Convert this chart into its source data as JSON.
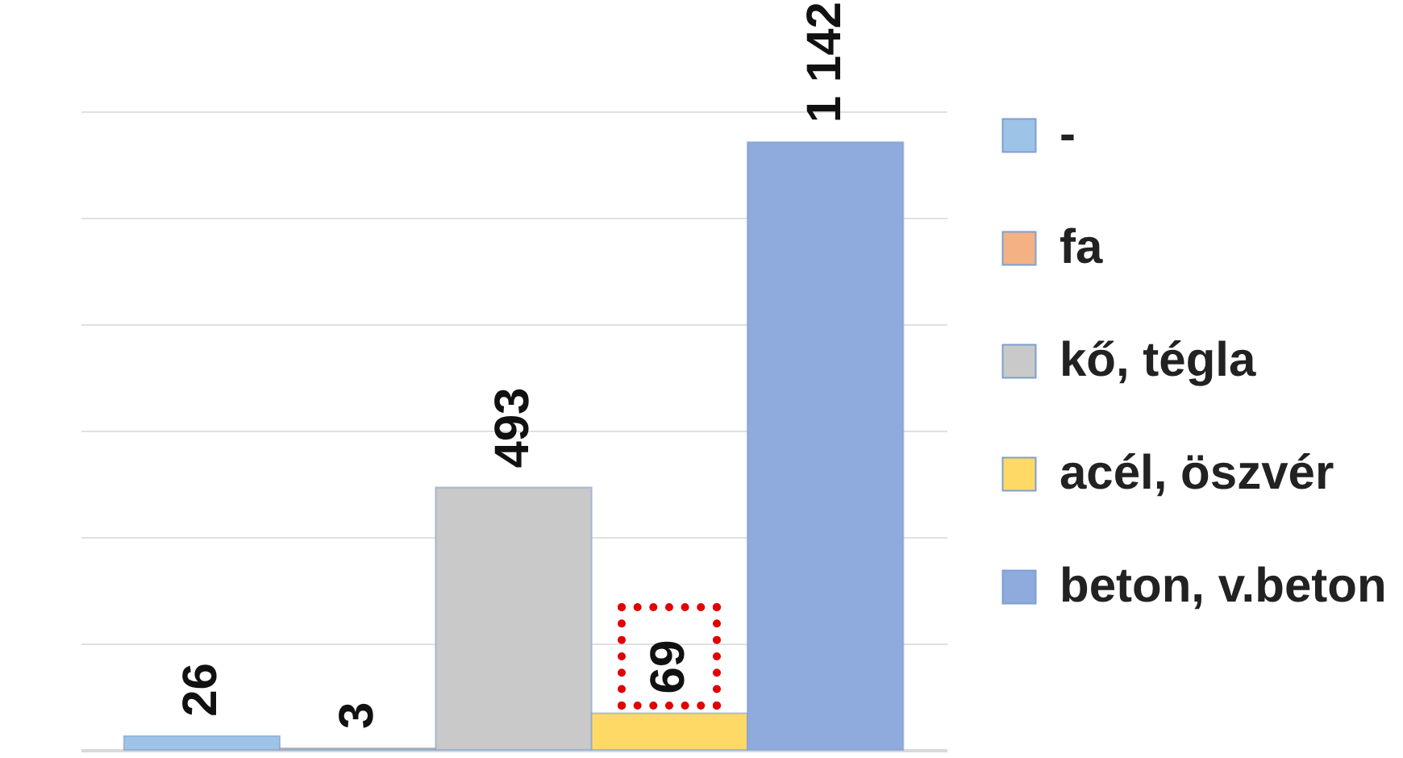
{
  "chart_data": {
    "type": "bar",
    "categories": [
      null
    ],
    "series": [
      {
        "name": "-",
        "color": "#9dc3e6",
        "values": [
          26
        ],
        "value_labels": [
          "26"
        ]
      },
      {
        "name": "fa",
        "color": "#f4b183",
        "values": [
          3
        ],
        "value_labels": [
          "3"
        ]
      },
      {
        "name": "kő, tégla",
        "color": "#c9c9c9",
        "values": [
          493
        ],
        "value_labels": [
          "493"
        ]
      },
      {
        "name": "acél, öszvér",
        "color": "#ffd966",
        "values": [
          69
        ],
        "value_labels": [
          "69"
        ]
      },
      {
        "name": "beton, v.beton",
        "color": "#8faadc",
        "values": [
          1142
        ],
        "value_labels": [
          "1 142"
        ]
      }
    ],
    "ylim": [
      0,
      1200
    ],
    "yticks": [
      {
        "value": 0,
        "label": null
      },
      {
        "value": 200,
        "label": null
      },
      {
        "value": 400,
        "label": null
      },
      {
        "value": 600,
        "label": null
      },
      {
        "value": 800,
        "label": null
      },
      {
        "value": 1000,
        "label": null
      },
      {
        "value": 1200,
        "label": null
      }
    ],
    "grid": "y",
    "tick_labels": false,
    "legend": "right"
  }
}
